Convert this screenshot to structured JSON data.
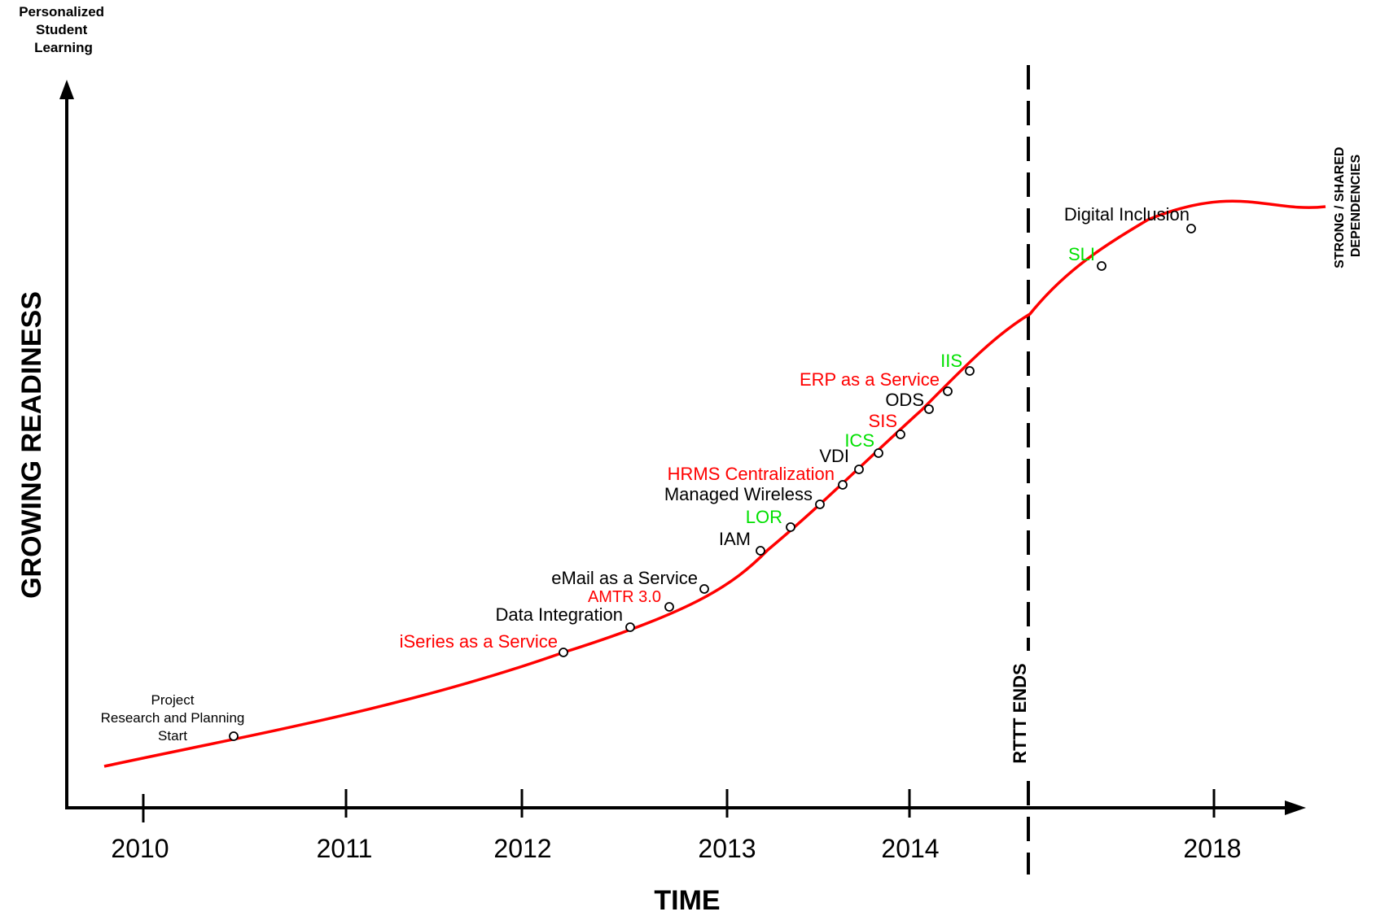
{
  "axes": {
    "y_top_label": [
      "Personalized",
      "Student",
      "Learning"
    ],
    "y_axis_label": "GROWING READINESS",
    "x_axis_label": "TIME",
    "right_label": [
      "STRONG / SHARED",
      "DEPENDENCIES"
    ]
  },
  "years": [
    "2010",
    "2011",
    "2012",
    "2013",
    "2014",
    "2018"
  ],
  "divider_label": "RTTT ENDS",
  "milestones": [
    {
      "label": [
        "Project",
        "Research and Planning",
        "Start"
      ],
      "color": "#000000"
    },
    {
      "label": [
        "iSeries as a Service"
      ],
      "color": "#ff0000"
    },
    {
      "label": [
        "Data Integration"
      ],
      "color": "#000000"
    },
    {
      "label": [
        "AMTR 3.0"
      ],
      "color": "#ff0000"
    },
    {
      "label": [
        "eMail as a Service"
      ],
      "color": "#000000"
    },
    {
      "label": [
        "IAM"
      ],
      "color": "#000000"
    },
    {
      "label": [
        "LOR"
      ],
      "color": "#00e000"
    },
    {
      "label": [
        "Managed Wireless"
      ],
      "color": "#000000"
    },
    {
      "label": [
        "HRMS Centralization"
      ],
      "color": "#ff0000"
    },
    {
      "label": [
        "VDI"
      ],
      "color": "#000000"
    },
    {
      "label": [
        "ICS"
      ],
      "color": "#00e000"
    },
    {
      "label": [
        "SIS"
      ],
      "color": "#ff0000"
    },
    {
      "label": [
        "ODS"
      ],
      "color": "#000000"
    },
    {
      "label": [
        "ERP as a Service"
      ],
      "color": "#ff0000"
    },
    {
      "label": [
        "IIS"
      ],
      "color": "#00e000"
    },
    {
      "label": [
        "SLI"
      ],
      "color": "#00e000"
    },
    {
      "label": [
        "Digital Inclusion"
      ],
      "color": "#000000"
    }
  ],
  "colors": {
    "curve": "#ff0000",
    "axis": "#000000",
    "green": "#00e000",
    "red": "#ff0000"
  }
}
